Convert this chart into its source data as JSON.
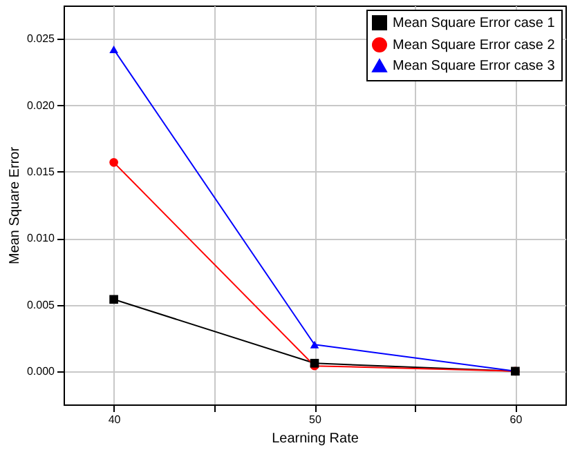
{
  "chart_data": {
    "type": "line",
    "xlabel": "Learning Rate",
    "ylabel": "Mean Square Error",
    "x": [
      40,
      50,
      60
    ],
    "series": [
      {
        "name": "Mean Square Error case 1",
        "color": "#000000",
        "marker": "square",
        "values": [
          0.0054,
          0.0006,
          0
        ]
      },
      {
        "name": "Mean Square Error case 2",
        "color": "#ff0000",
        "marker": "circle",
        "values": [
          0.0157,
          0.0004,
          0
        ]
      },
      {
        "name": "Mean Square Error case 3",
        "color": "#0000ff",
        "marker": "triangle",
        "values": [
          0.0242,
          0.002,
          0
        ]
      }
    ],
    "xlim": [
      37.5,
      62.5
    ],
    "xticks": [
      40,
      {
        "value": 45,
        "label": null
      },
      50,
      {
        "value": 55,
        "label": null
      },
      60
    ],
    "ylim": [
      -0.0025,
      0.0275
    ],
    "yticks": [
      {
        "value": 0,
        "label": "0.000"
      },
      0.005,
      {
        "value": 0.01,
        "label": "0.010"
      },
      0.015,
      {
        "value": 0.02,
        "label": "0.020"
      },
      0.025
    ],
    "grid": true,
    "legend": "top right",
    "line_style": "solid"
  }
}
